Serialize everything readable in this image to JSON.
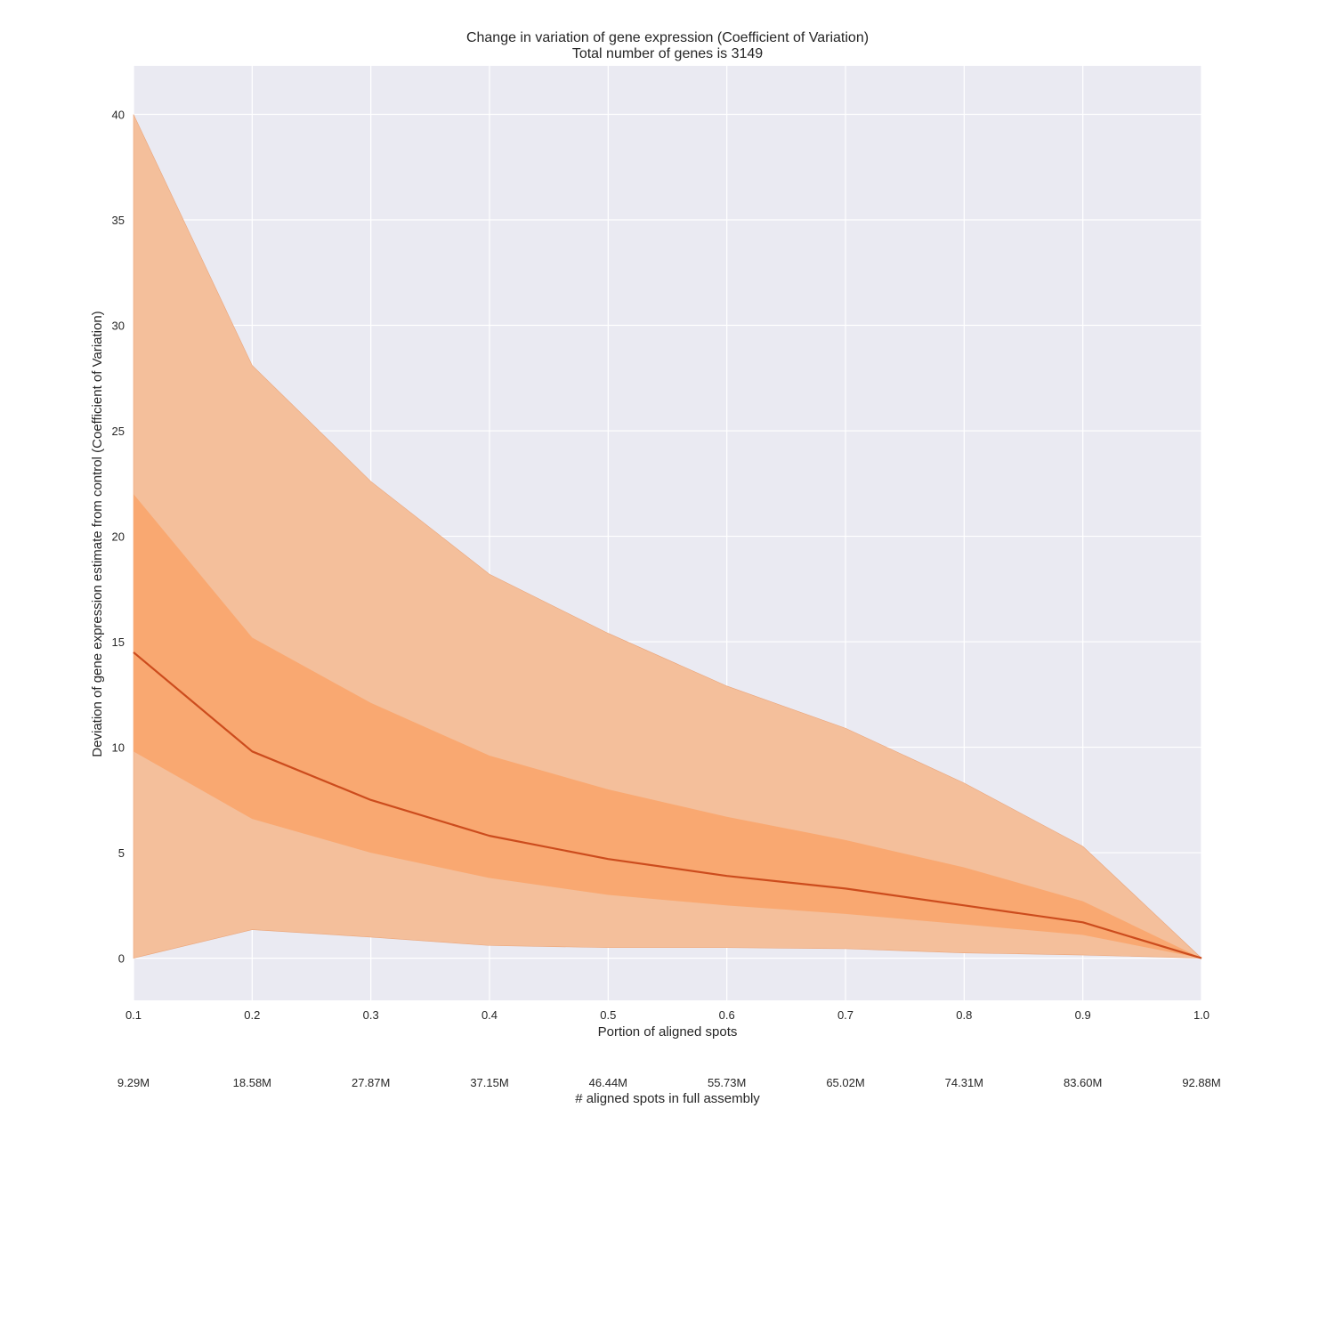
{
  "chart_data": {
    "type": "area",
    "title": "Change in variation of gene expression (Coefficient of Variation)",
    "subtitle": "Total number of genes is 3149",
    "xlabel": "Portion of aligned spots",
    "xlabel2": "# aligned spots in full assembly",
    "ylabel": "Deviation of gene expression estimate from control (Coefficient of Variation)",
    "x": [
      0.1,
      0.2,
      0.3,
      0.4,
      0.5,
      0.6,
      0.7,
      0.8,
      0.9,
      1.0
    ],
    "x_tick_labels": [
      "0.1",
      "0.2",
      "0.3",
      "0.4",
      "0.5",
      "0.6",
      "0.7",
      "0.8",
      "0.9",
      "1.0"
    ],
    "x2_tick_labels": [
      "9.29M",
      "18.58M",
      "27.87M",
      "37.15M",
      "46.44M",
      "55.73M",
      "65.02M",
      "74.31M",
      "83.60M",
      "92.88M"
    ],
    "y_ticks": [
      0,
      5,
      10,
      15,
      20,
      25,
      30,
      35,
      40
    ],
    "xlim": [
      0.1,
      1.0
    ],
    "ylim": [
      -2,
      42.3
    ],
    "grid": true,
    "series": [
      {
        "role": "outer-upper",
        "values": [
          40.0,
          28.1,
          22.6,
          18.2,
          15.4,
          12.9,
          10.9,
          8.3,
          5.3,
          0.0
        ]
      },
      {
        "role": "inner-upper",
        "values": [
          22.0,
          15.2,
          12.1,
          9.6,
          8.0,
          6.7,
          5.6,
          4.3,
          2.7,
          0.0
        ]
      },
      {
        "role": "median",
        "values": [
          14.5,
          9.8,
          7.5,
          5.8,
          4.7,
          3.9,
          3.3,
          2.5,
          1.7,
          0.0
        ]
      },
      {
        "role": "inner-lower",
        "values": [
          9.8,
          6.6,
          5.0,
          3.8,
          3.0,
          2.5,
          2.1,
          1.6,
          1.1,
          0.0
        ]
      },
      {
        "role": "outer-lower",
        "values": [
          0.0,
          1.35,
          1.0,
          0.6,
          0.5,
          0.5,
          0.45,
          0.25,
          0.15,
          0.0
        ]
      }
    ],
    "colors": {
      "background": "#eaeaf2",
      "grid": "#ffffff",
      "outer_band": "#f4bf9b",
      "inner_band": "#f9a871",
      "median_line": "#cc4c1d"
    }
  }
}
